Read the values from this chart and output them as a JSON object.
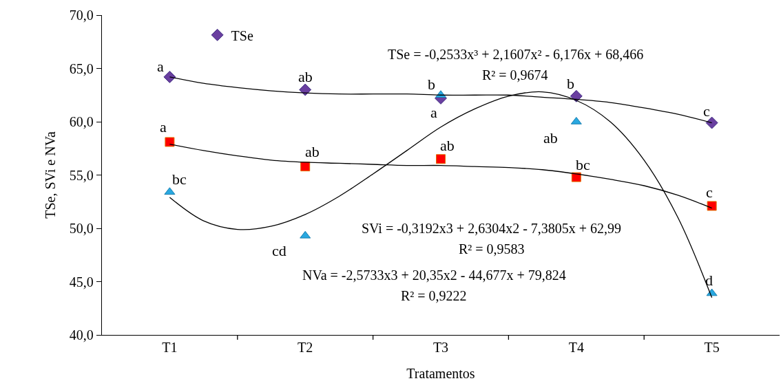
{
  "chart_data": {
    "type": "scatter",
    "xlabel": "Tratamentos",
    "ylabel": "TSe, SVi e NVa",
    "categories": [
      "T1",
      null,
      null,
      null,
      "T2",
      null,
      null,
      null,
      "T3",
      null,
      null,
      null,
      "T4",
      null,
      null,
      null,
      "T5"
    ],
    "ylim": [
      40,
      70
    ],
    "yticks": [
      {
        "value": 40,
        "label": "40,0"
      },
      {
        "value": 45,
        "label": "45,0"
      },
      {
        "value": 50,
        "label": "50,0"
      },
      {
        "value": 55,
        "label": "55,0"
      },
      {
        "value": 60,
        "label": "60,0"
      },
      {
        "value": 65,
        "label": "65,0"
      },
      {
        "value": 70,
        "label": "70,0"
      }
    ],
    "grid": false,
    "legend": "top left",
    "series": [
      {
        "name": "TSe",
        "marker": "diamond",
        "color": "#6a3fa0",
        "values": [
          64.2,
          null,
          null,
          null,
          63.0,
          null,
          null,
          null,
          62.2,
          null,
          null,
          null,
          62.4,
          null,
          null,
          null,
          59.9
        ]
      },
      {
        "marker": "square",
        "color": "#ff0000",
        "values": [
          58.1,
          null,
          null,
          null,
          55.8,
          null,
          null,
          null,
          56.5,
          null,
          null,
          null,
          54.8,
          null,
          null,
          null,
          52.1
        ]
      },
      {
        "marker": "triangle",
        "color": "#29a8e0",
        "values": [
          53.4,
          null,
          null,
          null,
          49.3,
          null,
          null,
          null,
          62.5,
          null,
          null,
          null,
          60.0,
          null,
          null,
          null,
          43.9
        ]
      },
      {
        "type": "line",
        "color": "#000000",
        "values": [
          64.2,
          63.6,
          63.2,
          62.9,
          62.7,
          62.6,
          62.6,
          62.6,
          62.5,
          62.5,
          62.5,
          62.3,
          62.1,
          61.8,
          61.3,
          60.7,
          59.9
        ]
      },
      {
        "type": "line",
        "color": "#000000",
        "values": [
          57.9,
          57.3,
          56.8,
          56.4,
          56.2,
          56.1,
          56.0,
          55.9,
          55.9,
          55.8,
          55.7,
          55.5,
          55.1,
          54.6,
          54.0,
          53.1,
          51.9
        ]
      },
      {
        "type": "line",
        "color": "#000000",
        "values": [
          52.9,
          50.7,
          49.9,
          50.2,
          51.3,
          53.0,
          55.1,
          57.3,
          59.5,
          61.2,
          62.4,
          62.8,
          62.0,
          60.0,
          56.4,
          51.0,
          43.5
        ]
      }
    ],
    "annotations": [
      "a",
      "ab",
      "b",
      "b",
      "c",
      "a",
      "ab",
      "ab",
      "bc",
      "c",
      "bc",
      "cd",
      "a",
      "ab",
      "d",
      "TSe = -0,2533x³ + 2,1607x² - 6,176x + 68,466",
      "R² = 0,9674",
      "SVi = -0,3192x3 + 2,6304x2 - 7,3805x + 62,99",
      "R² = 0,9583",
      "NVa = -2,5733x3 + 20,35x2 - 44,677x + 79,824",
      "R² = 0,9222"
    ]
  }
}
